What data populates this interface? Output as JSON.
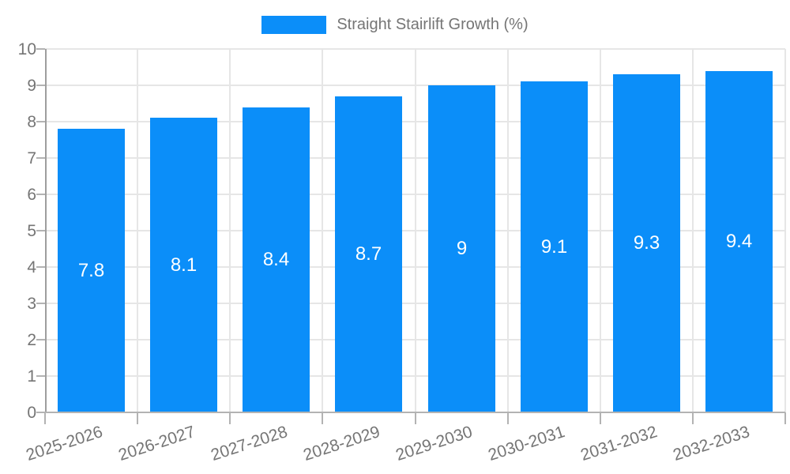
{
  "legend": {
    "label": "Straight Stairlift Growth (%)"
  },
  "colors": {
    "bar": "#0b8ef9",
    "grid": "#e6e6e6",
    "axis_line": "#9e9e9e",
    "baseline": "#b3b3b3",
    "tick": "#b3b3b3",
    "axis_label": "#757575",
    "value_label": "#ffffff",
    "background": "#ffffff"
  },
  "chart_data": {
    "type": "bar",
    "title": "Straight Stairlift Growth (%)",
    "categories": [
      "2025-2026",
      "2026-2027",
      "2027-2028",
      "2028-2029",
      "2029-2030",
      "2030-2031",
      "2031-2032",
      "2032-2033"
    ],
    "values": [
      7.8,
      8.1,
      8.4,
      8.7,
      9,
      9.1,
      9.3,
      9.4
    ],
    "bar_labels": [
      "7.8",
      "8.1",
      "8.4",
      "8.7",
      "9",
      "9.1",
      "9.3",
      "9.4"
    ],
    "xlabel": "",
    "ylabel": "",
    "ylim": [
      0,
      10
    ],
    "yticks": [
      0,
      1,
      2,
      3,
      4,
      5,
      6,
      7,
      8,
      9,
      10
    ],
    "grid": true,
    "legend_position": "top",
    "legend_entries": [
      "Straight Stairlift Growth (%)"
    ]
  }
}
